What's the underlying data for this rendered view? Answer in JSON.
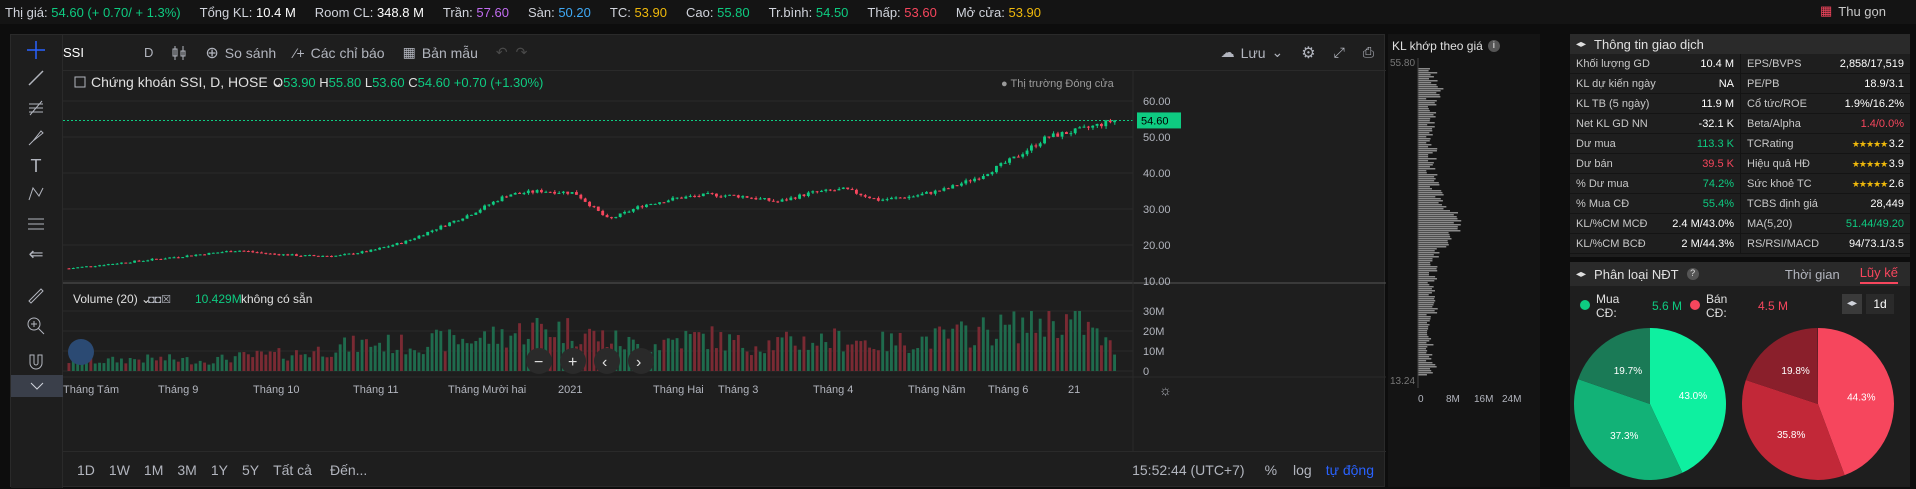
{
  "topbar": {
    "items": [
      {
        "label": "Thị giá:",
        "value": "54.60 (+ 0.70/ + 1.3%)",
        "cls": "up"
      },
      {
        "label": "Tổng KL:",
        "value": "10.4 M",
        "cls": "white"
      },
      {
        "label": "Room CL:",
        "value": "348.8 M",
        "cls": "white"
      },
      {
        "label": "Trần:",
        "value": "57.60",
        "cls": "ceil"
      },
      {
        "label": "Sàn:",
        "value": "50.20",
        "cls": "floor"
      },
      {
        "label": "TC:",
        "value": "53.90",
        "cls": "ref"
      },
      {
        "label": "Cao:",
        "value": "55.80",
        "cls": "up"
      },
      {
        "label": "Tr.bình:",
        "value": "54.50",
        "cls": "up"
      },
      {
        "label": "Thấp:",
        "value": "53.60",
        "cls": "down"
      },
      {
        "label": "Mở cửa:",
        "value": "53.90",
        "cls": "ref"
      }
    ],
    "collapse_label": "Thu gọn"
  },
  "toolbar": {
    "symbol": "SSI",
    "interval": "D",
    "compare": "So sánh",
    "indicators": "Các chỉ báo",
    "templates": "Bản mẫu",
    "save": "Lưu"
  },
  "legend": {
    "title": "Chứng khoán SSI, D, HOSE",
    "o_label": "O",
    "o": "53.90",
    "h_label": "H",
    "h": "55.80",
    "l_label": "L",
    "l": "53.60",
    "c_label": "C",
    "c": "54.60",
    "change": "+0.70 (+1.30%)",
    "market_status": "Thị trường Đóng cửa"
  },
  "volume_legend": {
    "label": "Volume (20)",
    "value": "10.429M",
    "note": "không có sẵn"
  },
  "price_axis": {
    "ticks": [
      "60.00",
      "50.00",
      "40.00",
      "30.00",
      "20.00",
      "10.00"
    ],
    "last": "54.60"
  },
  "volume_axis": {
    "ticks": [
      "30M",
      "20M",
      "10M",
      "0"
    ]
  },
  "time_axis": [
    "Tháng Tám",
    "Tháng 9",
    "Tháng 10",
    "Tháng 11",
    "Tháng Mười hai",
    "2021",
    "Tháng Hai",
    "Tháng 3",
    "Tháng 4",
    "Tháng Năm",
    "Tháng 6",
    "21"
  ],
  "bottombar": {
    "ranges": [
      "1D",
      "1W",
      "1M",
      "3M",
      "1Y",
      "5Y",
      "Tất cả"
    ],
    "goto": "Đến...",
    "time": "15:52:44 (UTC+7)",
    "percent": "%",
    "log": "log",
    "auto": "tự động"
  },
  "profile": {
    "title": "KL khớp theo giá",
    "top": "55.80",
    "bottom": "13.24",
    "xticks": [
      "0",
      "8M",
      "16M",
      "24M"
    ]
  },
  "info": {
    "title": "Thông tin giao dịch",
    "rows": [
      [
        [
          "Khối lượng GD",
          "10.4 M",
          "white"
        ],
        [
          "EPS/BVPS",
          "2,858/17,519",
          "white"
        ]
      ],
      [
        [
          "KL dự kiến ngày",
          "NA",
          "white"
        ],
        [
          "PE/PB",
          "18.9/3.1",
          "white"
        ]
      ],
      [
        [
          "KL TB (5 ngày)",
          "11.9 M",
          "white"
        ],
        [
          "Cổ tức/ROE",
          "1.9%/16.2%",
          "white"
        ]
      ],
      [
        [
          "Net KL GD NN",
          "-32.1 K",
          "white"
        ],
        [
          "Beta/Alpha",
          "1.4/0.0%",
          "mix"
        ]
      ],
      [
        [
          "Dư mua",
          "113.3 K",
          "up"
        ],
        [
          "TCRating",
          "3.2",
          "star"
        ]
      ],
      [
        [
          "Dư bán",
          "39.5 K",
          "down"
        ],
        [
          "Hiệu quả HĐ",
          "3.9",
          "star"
        ]
      ],
      [
        [
          "% Dư mua",
          "74.2%",
          "up"
        ],
        [
          "Sức khoẻ TC",
          "2.6",
          "star"
        ]
      ],
      [
        [
          "% Mua CĐ",
          "55.4%",
          "up"
        ],
        [
          "TCBS định giá",
          "28,449",
          "white"
        ]
      ],
      [
        [
          "KL/%CM MCĐ",
          "2.4 M/43.0%",
          "white"
        ],
        [
          "MA(5,20)",
          "51.44/49.20",
          "up"
        ]
      ],
      [
        [
          "KL/%CM BCĐ",
          "2 M/44.3%",
          "white"
        ],
        [
          "RS/RSI/MACD",
          "94/73.1/3.5",
          "mix2"
        ]
      ]
    ]
  },
  "ndt": {
    "title": "Phân loại NĐT",
    "tab_time": "Thời gian",
    "tab_cum": "Lũy kế",
    "buy_label": "Mua CĐ:",
    "buy_value": "5.6 M",
    "sell_label": "Bán CĐ:",
    "sell_value": "4.5 M",
    "interval": "1d",
    "buy_pie": [
      43.0,
      37.3,
      19.7
    ],
    "sell_pie": [
      44.3,
      35.8,
      19.8
    ]
  },
  "chart_data": {
    "type": "candlestick",
    "symbol": "SSI",
    "ylim": [
      10,
      60
    ],
    "months": [
      "Tháng Tám",
      "Tháng 9",
      "Tháng 10",
      "Tháng 11",
      "Tháng Mười hai",
      "2021",
      "Tháng Hai",
      "Tháng 3",
      "Tháng 4",
      "Tháng Năm",
      "Tháng 6",
      "21"
    ],
    "approx_close": [
      13.5,
      14.5,
      15.5,
      16.5,
      17.5,
      18.5,
      17.5,
      17,
      17,
      18.5,
      21,
      25,
      29,
      34,
      35,
      34.5,
      27,
      31,
      33,
      34,
      33.5,
      32,
      34.5,
      35.5,
      32.5,
      33.5,
      35.5,
      39,
      44,
      50,
      52,
      54.6
    ],
    "approx_volume": [
      5,
      5,
      6,
      6,
      5,
      7,
      8,
      9,
      12,
      14,
      13,
      15,
      16,
      18,
      22,
      20,
      16,
      12,
      16,
      17,
      13,
      14,
      15,
      16,
      14,
      15,
      17,
      20,
      22,
      26,
      24,
      10.4
    ]
  }
}
